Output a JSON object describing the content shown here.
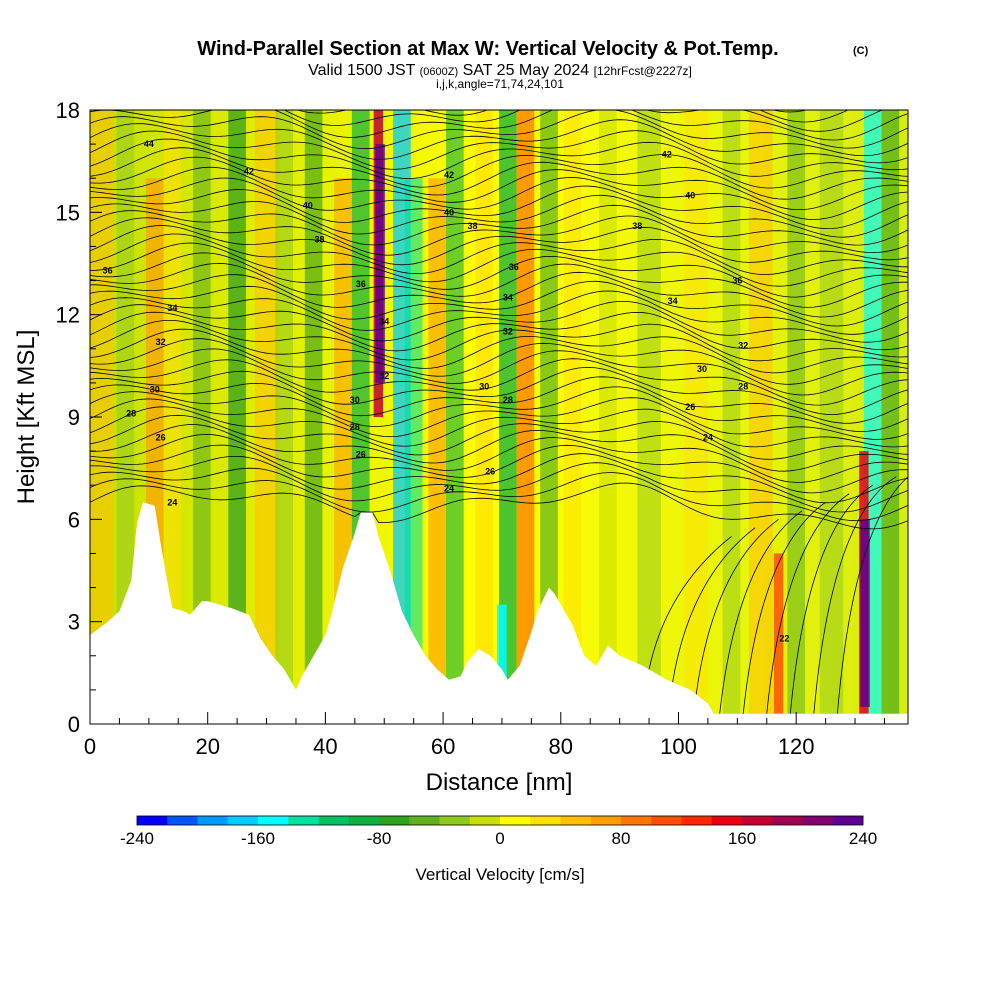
{
  "title": {
    "main": "Wind-Parallel Section at Max W: Vertical Velocity & Pot.Temp.",
    "copyright": "(C)",
    "valid_a": "Valid 1500 JST",
    "valid_utc": "(0600Z)",
    "valid_b": "SAT 25 May 2024",
    "fcst": "[12hrFcst@2227z]",
    "ijk": "i,j,k,angle=71,74,24,101"
  },
  "chart_data": {
    "type": "heatmap",
    "xlabel": "Distance [nm]",
    "ylabel": "Height [Kft MSL]",
    "xlim": [
      0,
      139
    ],
    "ylim": [
      0,
      18
    ],
    "x_ticks": [
      0,
      20,
      40,
      60,
      80,
      100,
      120
    ],
    "y_ticks": [
      0,
      3,
      6,
      9,
      12,
      15,
      18
    ],
    "x_tick_labels": [
      "0",
      "20",
      "40",
      "60",
      "80",
      "100",
      "120"
    ],
    "y_tick_labels": [
      "0",
      "3",
      "6",
      "9",
      "12",
      "15",
      "18"
    ],
    "colorbar": {
      "label": "Vertical Velocity [cm/s]",
      "range": [
        -240,
        240
      ],
      "tick_values": [
        -240,
        -160,
        -80,
        0,
        80,
        160,
        240
      ],
      "tick_labels": [
        "-240",
        "-160",
        "-80",
        "0",
        "80",
        "160",
        "240"
      ],
      "colors": [
        "#0000ff",
        "#0055ff",
        "#0099ff",
        "#00ccff",
        "#00ffff",
        "#00e0a0",
        "#00c060",
        "#10b040",
        "#30a020",
        "#60b020",
        "#90c820",
        "#c8e000",
        "#ffff00",
        "#ffe000",
        "#ffc000",
        "#ffa000",
        "#ff7800",
        "#ff5000",
        "#ff2800",
        "#e60010",
        "#c00030",
        "#a00050",
        "#800070",
        "#600090"
      ]
    },
    "terrain": [
      [
        0,
        2.6
      ],
      [
        3,
        3.0
      ],
      [
        5,
        3.3
      ],
      [
        7,
        4.2
      ],
      [
        8,
        5.9
      ],
      [
        9,
        6.5
      ],
      [
        11,
        6.4
      ],
      [
        12,
        5.3
      ],
      [
        13,
        4.3
      ],
      [
        14,
        3.4
      ],
      [
        16,
        3.3
      ],
      [
        17,
        3.2
      ],
      [
        19,
        3.6
      ],
      [
        20,
        3.6
      ],
      [
        22,
        3.5
      ],
      [
        24,
        3.4
      ],
      [
        27,
        3.2
      ],
      [
        29,
        2.5
      ],
      [
        31,
        2.0
      ],
      [
        33,
        1.6
      ],
      [
        35,
        1.0
      ],
      [
        36,
        1.4
      ],
      [
        38,
        2.0
      ],
      [
        40,
        2.6
      ],
      [
        41,
        3.2
      ],
      [
        43,
        4.6
      ],
      [
        45,
        5.6
      ],
      [
        46,
        6.2
      ],
      [
        48,
        6.2
      ],
      [
        49,
        5.5
      ],
      [
        51,
        4.5
      ],
      [
        53,
        3.3
      ],
      [
        55,
        2.6
      ],
      [
        57,
        2.0
      ],
      [
        59,
        1.6
      ],
      [
        61,
        1.3
      ],
      [
        63,
        1.4
      ],
      [
        64,
        1.8
      ],
      [
        66,
        2.2
      ],
      [
        68,
        2.0
      ],
      [
        70,
        1.6
      ],
      [
        71,
        1.3
      ],
      [
        73,
        1.7
      ],
      [
        75,
        2.7
      ],
      [
        76,
        3.3
      ],
      [
        78,
        4.0
      ],
      [
        79,
        3.8
      ],
      [
        82,
        2.9
      ],
      [
        84,
        2.0
      ],
      [
        86,
        1.7
      ],
      [
        88,
        2.3
      ],
      [
        90,
        2.0
      ],
      [
        94,
        1.7
      ],
      [
        98,
        1.3
      ],
      [
        102,
        1.0
      ],
      [
        105,
        0.6
      ],
      [
        106,
        0.3
      ],
      [
        139,
        0.3
      ]
    ],
    "contour_labels": [
      {
        "x": 10,
        "y": 17.0,
        "text": "44"
      },
      {
        "x": 27,
        "y": 16.2,
        "text": "42"
      },
      {
        "x": 37,
        "y": 15.2,
        "text": "40"
      },
      {
        "x": 39,
        "y": 14.2,
        "text": "38"
      },
      {
        "x": 3,
        "y": 13.3,
        "text": "36"
      },
      {
        "x": 14,
        "y": 12.2,
        "text": "34"
      },
      {
        "x": 46,
        "y": 12.9,
        "text": "36"
      },
      {
        "x": 12,
        "y": 11.2,
        "text": "32"
      },
      {
        "x": 50,
        "y": 11.8,
        "text": "34"
      },
      {
        "x": 11,
        "y": 9.8,
        "text": "30"
      },
      {
        "x": 7,
        "y": 9.1,
        "text": "28"
      },
      {
        "x": 50,
        "y": 10.2,
        "text": "32"
      },
      {
        "x": 45,
        "y": 9.5,
        "text": "30"
      },
      {
        "x": 45,
        "y": 8.7,
        "text": "28"
      },
      {
        "x": 12,
        "y": 8.4,
        "text": "26"
      },
      {
        "x": 46,
        "y": 7.9,
        "text": "26"
      },
      {
        "x": 14,
        "y": 6.5,
        "text": "24"
      },
      {
        "x": 61,
        "y": 16.1,
        "text": "42"
      },
      {
        "x": 61,
        "y": 15.0,
        "text": "40"
      },
      {
        "x": 65,
        "y": 14.6,
        "text": "38"
      },
      {
        "x": 72,
        "y": 13.4,
        "text": "36"
      },
      {
        "x": 71,
        "y": 12.5,
        "text": "34"
      },
      {
        "x": 71,
        "y": 11.5,
        "text": "32"
      },
      {
        "x": 67,
        "y": 9.9,
        "text": "30"
      },
      {
        "x": 71,
        "y": 9.5,
        "text": "28"
      },
      {
        "x": 68,
        "y": 7.4,
        "text": "26"
      },
      {
        "x": 61,
        "y": 6.9,
        "text": "24"
      },
      {
        "x": 98,
        "y": 16.7,
        "text": "42"
      },
      {
        "x": 102,
        "y": 15.5,
        "text": "40"
      },
      {
        "x": 93,
        "y": 14.6,
        "text": "38"
      },
      {
        "x": 110,
        "y": 13.0,
        "text": "36"
      },
      {
        "x": 99,
        "y": 12.4,
        "text": "34"
      },
      {
        "x": 111,
        "y": 11.1,
        "text": "32"
      },
      {
        "x": 104,
        "y": 10.4,
        "text": "30"
      },
      {
        "x": 111,
        "y": 9.9,
        "text": "28"
      },
      {
        "x": 102,
        "y": 9.3,
        "text": "26"
      },
      {
        "x": 105,
        "y": 8.4,
        "text": "24"
      },
      {
        "x": 118,
        "y": 2.5,
        "text": "22"
      }
    ]
  }
}
